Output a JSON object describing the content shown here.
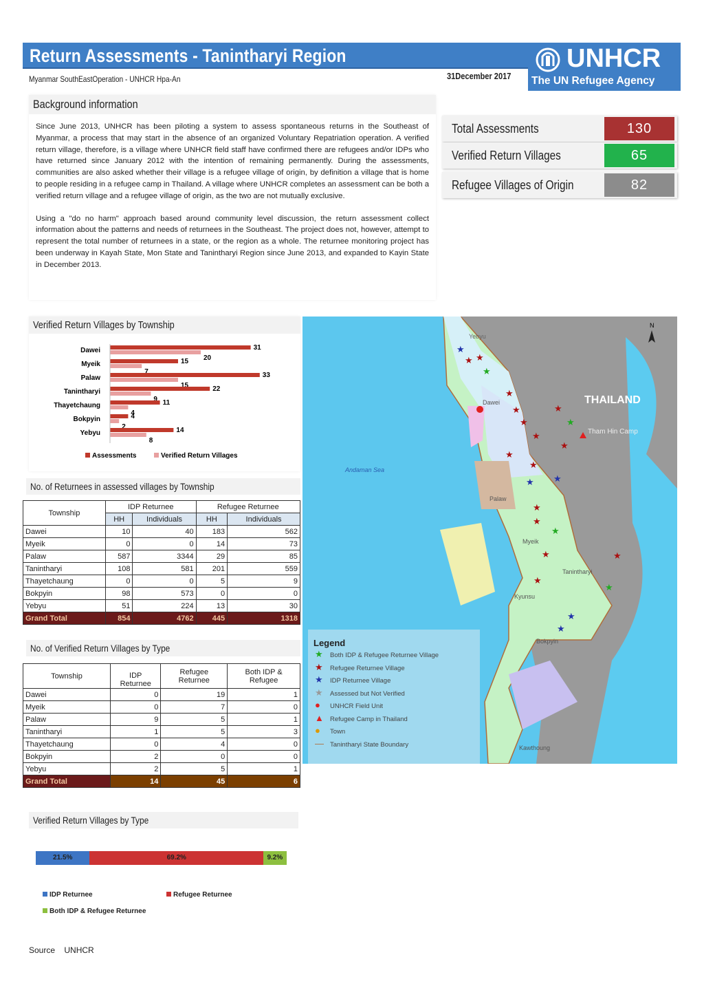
{
  "header": {
    "title": "Return Assessments - Tanintharyi Region",
    "subtitle": "Myanmar SouthEastOperation - UNHCR Hpa-An",
    "date": "31December 2017",
    "logo_main": "UNHCR",
    "logo_tagline": "The UN Refugee Agency",
    "brand_color": "#3f7fc6"
  },
  "background": {
    "heading": "Background information",
    "paragraphs": [
      "Since June 2013, UNHCR has been piloting a system to assess spontaneous returns in the Southeast of Myanmar, a process that may start in the absence of an organized Voluntary Repatriation operation. A verified return village, therefore, is a village where UNHCR field staff have confirmed there are refugees and/or IDPs who have returned since January 2012 with the intention of remaining permanently. During the assessments, communities are also asked whether their village is a refugee village of origin, by definition a village that is home to people residing in a refugee camp in Thailand. A village where UNHCR completes an assessment can be both a verified return village and a refugee village of origin, as the two are not mutually exclusive.",
      "Using a \"do no harm\" approach based around community level discussion, the return assessment collect information about the patterns and needs of returnees in the Southeast. The project does not, however, attempt to represent the total number of returnees in a state, or the region as a whole. The returnee monitoring project has been underway in Kayah State, Mon State and Tanintharyi Region since June 2013, and expanded to Kayin State in December 2013."
    ]
  },
  "stats": [
    {
      "label": "Total Assessments",
      "value": "130",
      "color": "#a83232"
    },
    {
      "label": "Verified Return Villages",
      "value": "65",
      "color": "#22b24c"
    },
    {
      "label": "Refugee Villages of Origin",
      "value": "82",
      "color": "#8c8c8c"
    }
  ],
  "chart_data": [
    {
      "type": "bar",
      "orientation": "horizontal",
      "title": "Verified Return Villages by Township",
      "categories": [
        "Dawei",
        "Myeik",
        "Palaw",
        "Tanintharyi",
        "Thayetchaung",
        "Bokpyin",
        "Yebyu"
      ],
      "series": [
        {
          "name": "Assessments",
          "values": [
            31,
            15,
            33,
            22,
            11,
            4,
            14
          ],
          "color": "#c0392b"
        },
        {
          "name": "Verified Return Villages",
          "values": [
            20,
            7,
            15,
            9,
            4,
            2,
            8
          ],
          "color": "#e8a0a0"
        }
      ],
      "legend": "bottom"
    },
    {
      "type": "bar",
      "orientation": "horizontal",
      "stacked": "100%",
      "title": "Verified Return Villages by Type",
      "categories": [
        ""
      ],
      "series": [
        {
          "name": "IDP Returnee",
          "values": [
            21.5
          ],
          "label": "21.5%",
          "color": "#3d75c4"
        },
        {
          "name": "Refugee Returnee",
          "values": [
            69.2
          ],
          "label": "69.2%",
          "color": "#cc3333"
        },
        {
          "name": "Both IDP & Refugee Returnee",
          "values": [
            9.2
          ],
          "label": "9.2%",
          "color": "#8dbf3f"
        }
      ],
      "legend": "bottom"
    }
  ],
  "table1": {
    "title": "No. of Returnees in assessed villages by Township",
    "h_township": "Township",
    "h_idp": "IDP Returnee",
    "h_ref": "Refugee Returnee",
    "h_hh": "HH",
    "h_ind": "Individuals",
    "rows": [
      [
        "Dawei",
        "10",
        "40",
        "183",
        "562"
      ],
      [
        "Myeik",
        "0",
        "0",
        "14",
        "73"
      ],
      [
        "Palaw",
        "587",
        "3344",
        "29",
        "85"
      ],
      [
        "Tanintharyi",
        "108",
        "581",
        "201",
        "559"
      ],
      [
        "Thayetchaung",
        "0",
        "0",
        "5",
        "9"
      ],
      [
        "Bokpyin",
        "98",
        "573",
        "0",
        "0"
      ],
      [
        "Yebyu",
        "51",
        "224",
        "13",
        "30"
      ]
    ],
    "total": [
      "Grand Total",
      "854",
      "4762",
      "445",
      "1318"
    ]
  },
  "table2": {
    "title": "No. of Verified Return Villages by Type",
    "h_township": "Township",
    "h_idp": "IDP Returnee",
    "h_ref": "Refugee Returnee",
    "h_both": "Both IDP & Refugee",
    "rows": [
      [
        "Dawei",
        "0",
        "19",
        "1"
      ],
      [
        "Myeik",
        "0",
        "7",
        "0"
      ],
      [
        "Palaw",
        "9",
        "5",
        "1"
      ],
      [
        "Tanintharyi",
        "1",
        "5",
        "3"
      ],
      [
        "Thayetchaung",
        "0",
        "4",
        "0"
      ],
      [
        "Bokpyin",
        "2",
        "0",
        "0"
      ],
      [
        "Yebyu",
        "2",
        "5",
        "1"
      ]
    ],
    "total": [
      "Grand Total",
      "14",
      "45",
      "6"
    ]
  },
  "map": {
    "labels": {
      "thailand": "THAILAND",
      "camp": "Tham Hin Camp",
      "sea": "Andaman Sea",
      "yebyu": "Yebyu",
      "dawei": "Dawei",
      "palaw": "Palaw",
      "myeik": "Myeik",
      "tanintharyi": "Tanintharyi",
      "kyunsu": "Kyunsu",
      "bokpyin": "Bokpyin",
      "kawthoung": "Kawthoung",
      "north": "N"
    },
    "legend": {
      "title": "Legend",
      "items": [
        "Both IDP & Refugee Returnee Village",
        "Refugee Returnee Village",
        "IDP Returnee Village",
        "Assessed but Not Verified",
        "UNHCR Field Unit",
        "Refugee Camp in Thailand",
        "Town",
        "Tanintharyi State Boundary"
      ]
    }
  },
  "source": {
    "label": "Source",
    "value": "UNHCR"
  }
}
